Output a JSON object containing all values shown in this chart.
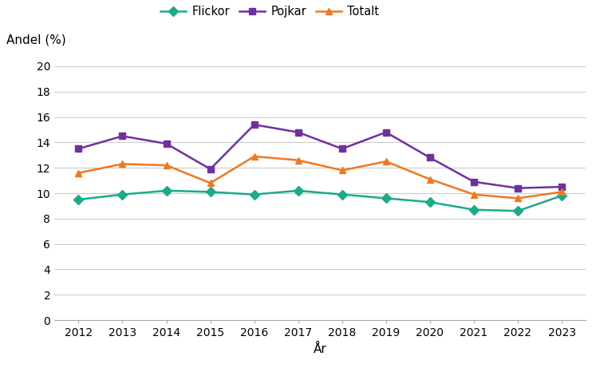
{
  "years": [
    2012,
    2013,
    2014,
    2015,
    2016,
    2017,
    2018,
    2019,
    2020,
    2021,
    2022,
    2023
  ],
  "flickor": [
    9.5,
    9.9,
    10.2,
    10.1,
    9.9,
    10.2,
    9.9,
    9.6,
    9.3,
    8.7,
    8.6,
    9.8
  ],
  "pojkar": [
    13.5,
    14.5,
    13.9,
    11.9,
    15.4,
    14.8,
    13.5,
    14.8,
    12.8,
    10.9,
    10.4,
    10.5
  ],
  "totalt": [
    11.6,
    12.3,
    12.2,
    10.8,
    12.9,
    12.6,
    11.8,
    12.5,
    11.1,
    9.9,
    9.6,
    10.1
  ],
  "flickor_color": "#1aab8a",
  "pojkar_color": "#7030a0",
  "totalt_color": "#f07820",
  "background_color": "#ffffff",
  "grid_color": "#cccccc",
  "ylabel": "Andel (%)",
  "xlabel": "År",
  "ylim": [
    0,
    20
  ],
  "yticks": [
    0,
    2,
    4,
    6,
    8,
    10,
    12,
    14,
    16,
    18,
    20
  ],
  "legend_flickor": "Flickor",
  "legend_pojkar": "Pojkar",
  "legend_totalt": "Totalt",
  "marker_flickor": "D",
  "marker_pojkar": "s",
  "marker_totalt": "^",
  "linewidth": 1.8,
  "markersize": 6
}
